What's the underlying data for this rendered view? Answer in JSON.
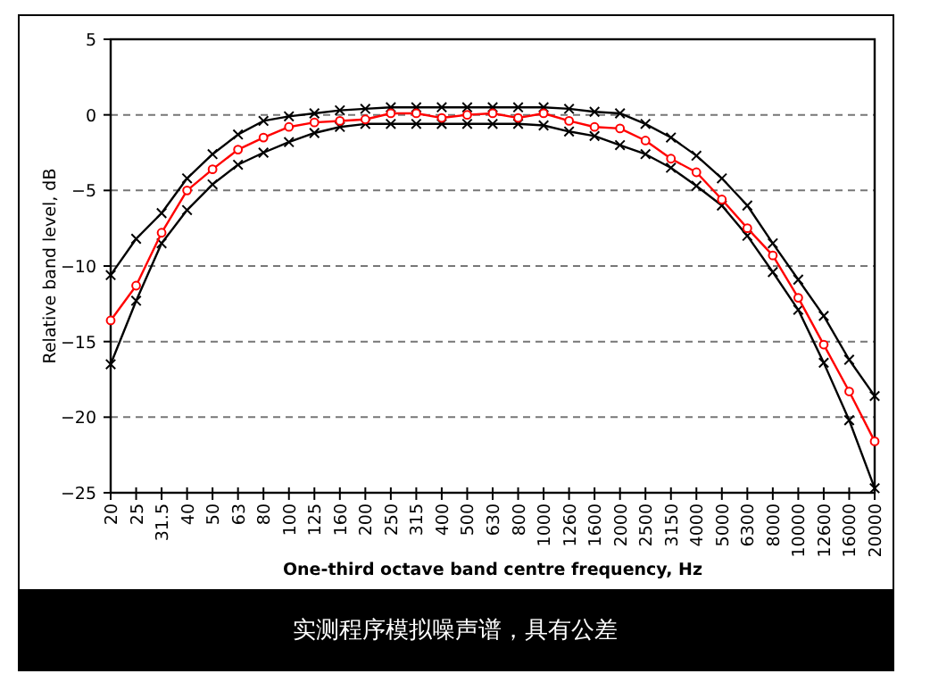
{
  "chart_data": {
    "type": "line",
    "categories": [
      "20",
      "25",
      "31.5",
      "40",
      "50",
      "63",
      "80",
      "100",
      "125",
      "160",
      "200",
      "250",
      "315",
      "400",
      "500",
      "630",
      "800",
      "1000",
      "1260",
      "1600",
      "2000",
      "2500",
      "3150",
      "4000",
      "5000",
      "6300",
      "8000",
      "10000",
      "12600",
      "16000",
      "20000"
    ],
    "series": [
      {
        "color": "#000000",
        "marker": "cross",
        "values": [
          -10.6,
          -8.2,
          -6.5,
          -4.2,
          -2.6,
          -1.3,
          -0.4,
          -0.1,
          0.1,
          0.3,
          0.4,
          0.5,
          0.5,
          0.5,
          0.5,
          0.5,
          0.5,
          0.5,
          0.4,
          0.2,
          0.1,
          -0.6,
          -1.5,
          -2.7,
          -4.2,
          -6.0,
          -8.5,
          -10.9,
          -13.3,
          -16.2,
          -18.6
        ]
      },
      {
        "color": "#000000",
        "marker": "cross",
        "values": [
          -16.5,
          -12.3,
          -8.5,
          -6.3,
          -4.6,
          -3.3,
          -2.5,
          -1.8,
          -1.2,
          -0.8,
          -0.6,
          -0.6,
          -0.6,
          -0.6,
          -0.6,
          -0.6,
          -0.6,
          -0.7,
          -1.1,
          -1.4,
          -2.0,
          -2.6,
          -3.5,
          -4.7,
          -6.0,
          -8.0,
          -10.4,
          -12.9,
          -16.4,
          -20.2,
          -24.7
        ]
      },
      {
        "color": "#ff0000",
        "marker": "circle",
        "values": [
          -13.6,
          -11.3,
          -7.8,
          -5.0,
          -3.6,
          -2.3,
          -1.5,
          -0.8,
          -0.5,
          -0.4,
          -0.3,
          0.1,
          0.1,
          -0.2,
          0.0,
          0.1,
          -0.2,
          0.1,
          -0.4,
          -0.8,
          -0.9,
          -1.7,
          -2.9,
          -3.8,
          -5.6,
          -7.5,
          -9.3,
          -12.1,
          -15.2,
          -18.3,
          -21.6
        ]
      }
    ],
    "xlabel": "One-third octave band centre frequency, Hz",
    "ylabel": "Relative band level, dB",
    "ylim": [
      -25,
      5
    ],
    "yticks": [
      -25,
      -20,
      -15,
      -10,
      -5,
      0,
      5
    ],
    "grid": "y",
    "annotations": [
      "实测程序模拟噪声谱，具有公差"
    ]
  }
}
